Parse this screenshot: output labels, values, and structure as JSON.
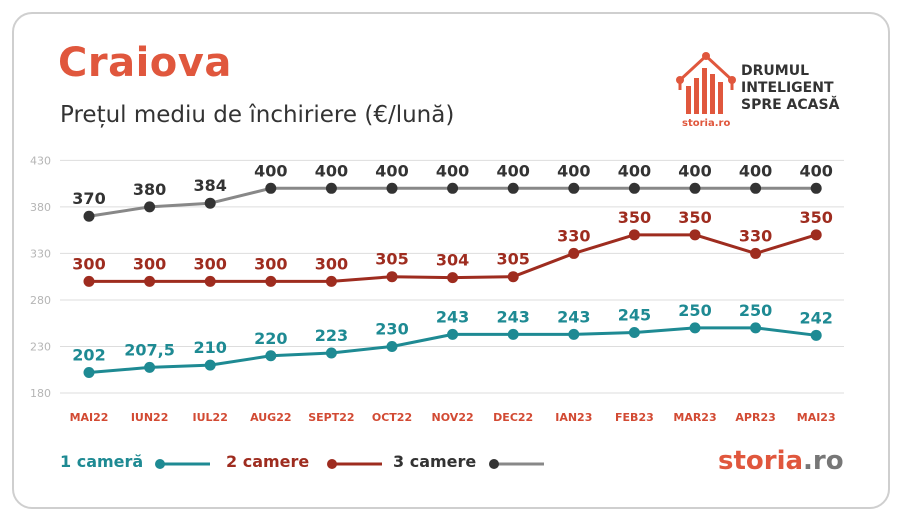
{
  "header": {
    "title": "Craiova",
    "subtitle": "Prețul mediu de închiriere (€/lună)"
  },
  "logo": {
    "line1": "DRUMUL",
    "line2": "INTELIGENT",
    "line3": "SPRE ACASĂ",
    "small": "storia.ro"
  },
  "footer_brand": {
    "part1": "storia",
    "part2": ".ro"
  },
  "colors": {
    "accent": "#e0573d",
    "series_1": "#1e8a93",
    "series_2": "#9e2c1f",
    "series_3": "#333333",
    "grid": "#dddddd"
  },
  "legend": [
    {
      "label": "1 cameră"
    },
    {
      "label": "2 camere"
    },
    {
      "label": "3 camere"
    }
  ],
  "chart_data": {
    "type": "line",
    "categories": [
      "MAI22",
      "IUN22",
      "IUL22",
      "AUG22",
      "SEPT22",
      "OCT22",
      "NOV22",
      "DEC22",
      "IAN23",
      "FEB23",
      "MAR23",
      "APR23",
      "MAI23"
    ],
    "y_ticks": [
      430,
      380,
      330,
      280,
      230,
      180
    ],
    "ylim": [
      180,
      430
    ],
    "grid": true,
    "legend_position": "bottom-left",
    "series": [
      {
        "name": "1 cameră",
        "values": [
          202,
          207.5,
          210,
          220,
          223,
          230,
          243,
          243,
          243,
          245,
          250,
          250,
          242
        ],
        "labels": [
          "202",
          "207,5",
          "210",
          "220",
          "223",
          "230",
          "243",
          "243",
          "243",
          "245",
          "250",
          "250",
          "242"
        ]
      },
      {
        "name": "2 camere",
        "values": [
          300,
          300,
          300,
          300,
          300,
          305,
          304,
          305,
          330,
          350,
          350,
          330,
          350
        ],
        "labels": [
          "300",
          "300",
          "300",
          "300",
          "300",
          "305",
          "304",
          "305",
          "330",
          "350",
          "350",
          "330",
          "350"
        ]
      },
      {
        "name": "3 camere",
        "values": [
          370,
          380,
          384,
          400,
          400,
          400,
          400,
          400,
          400,
          400,
          400,
          400,
          400
        ],
        "labels": [
          "370",
          "380",
          "384",
          "400",
          "400",
          "400",
          "400",
          "400",
          "400",
          "400",
          "400",
          "400",
          "400"
        ]
      }
    ]
  }
}
